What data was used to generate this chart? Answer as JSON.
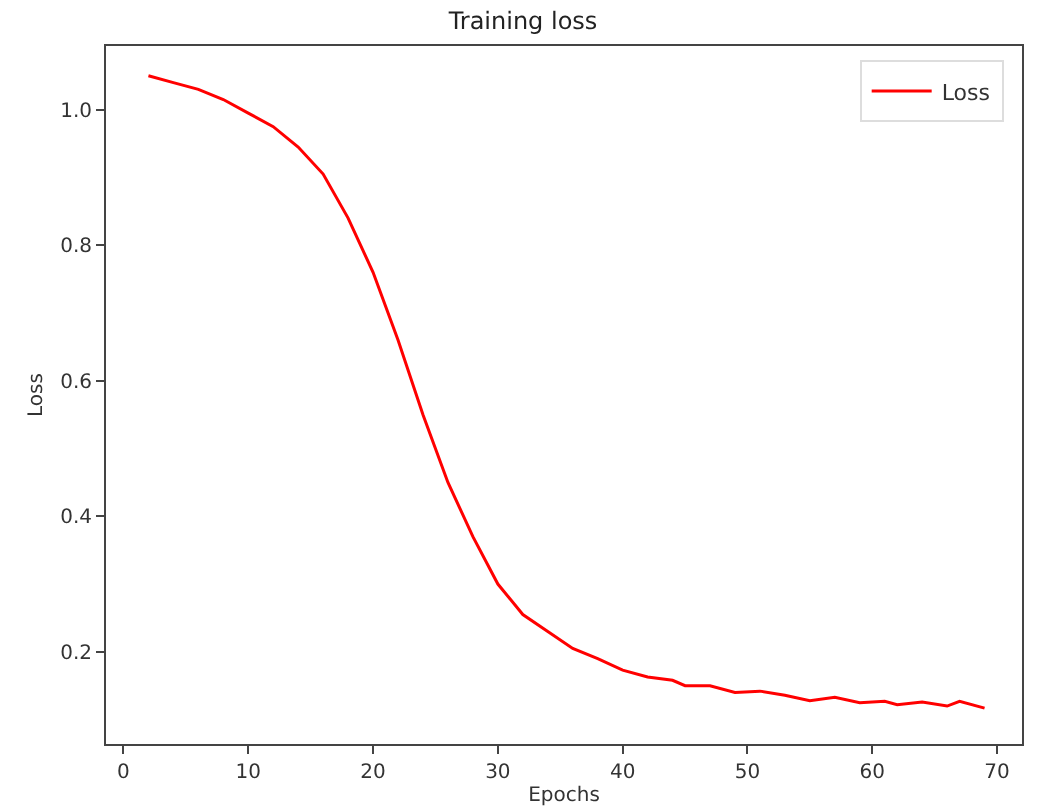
{
  "chart_data": {
    "type": "line",
    "title": "Training loss",
    "xlabel": "Epochs",
    "ylabel": "Loss",
    "x": [
      2,
      4,
      6,
      8,
      10,
      12,
      14,
      16,
      18,
      20,
      22,
      24,
      26,
      28,
      30,
      32,
      34,
      36,
      38,
      40,
      42,
      44,
      45,
      47,
      49,
      51,
      53,
      55,
      57,
      59,
      61,
      62,
      64,
      66,
      67,
      69
    ],
    "series": [
      {
        "name": "Loss",
        "color": "#ff0000",
        "values": [
          1.05,
          1.04,
          1.03,
          1.015,
          0.995,
          0.975,
          0.945,
          0.905,
          0.84,
          0.76,
          0.66,
          0.55,
          0.45,
          0.37,
          0.3,
          0.255,
          0.23,
          0.205,
          0.19,
          0.173,
          0.163,
          0.158,
          0.15,
          0.15,
          0.14,
          0.142,
          0.136,
          0.128,
          0.133,
          0.125,
          0.127,
          0.122,
          0.126,
          0.12,
          0.127,
          0.117
        ]
      }
    ],
    "xlim": [
      -1.4,
      72
    ],
    "ylim": [
      0.064,
      1.094
    ],
    "xticks": [
      0,
      10,
      20,
      30,
      40,
      50,
      60,
      70
    ],
    "yticks": [
      0.2,
      0.4,
      0.6,
      0.8,
      {
        "value": 1,
        "label": "1.0"
      }
    ],
    "grid": false,
    "legend": "top right",
    "marker": "none",
    "line_style": "solid"
  }
}
